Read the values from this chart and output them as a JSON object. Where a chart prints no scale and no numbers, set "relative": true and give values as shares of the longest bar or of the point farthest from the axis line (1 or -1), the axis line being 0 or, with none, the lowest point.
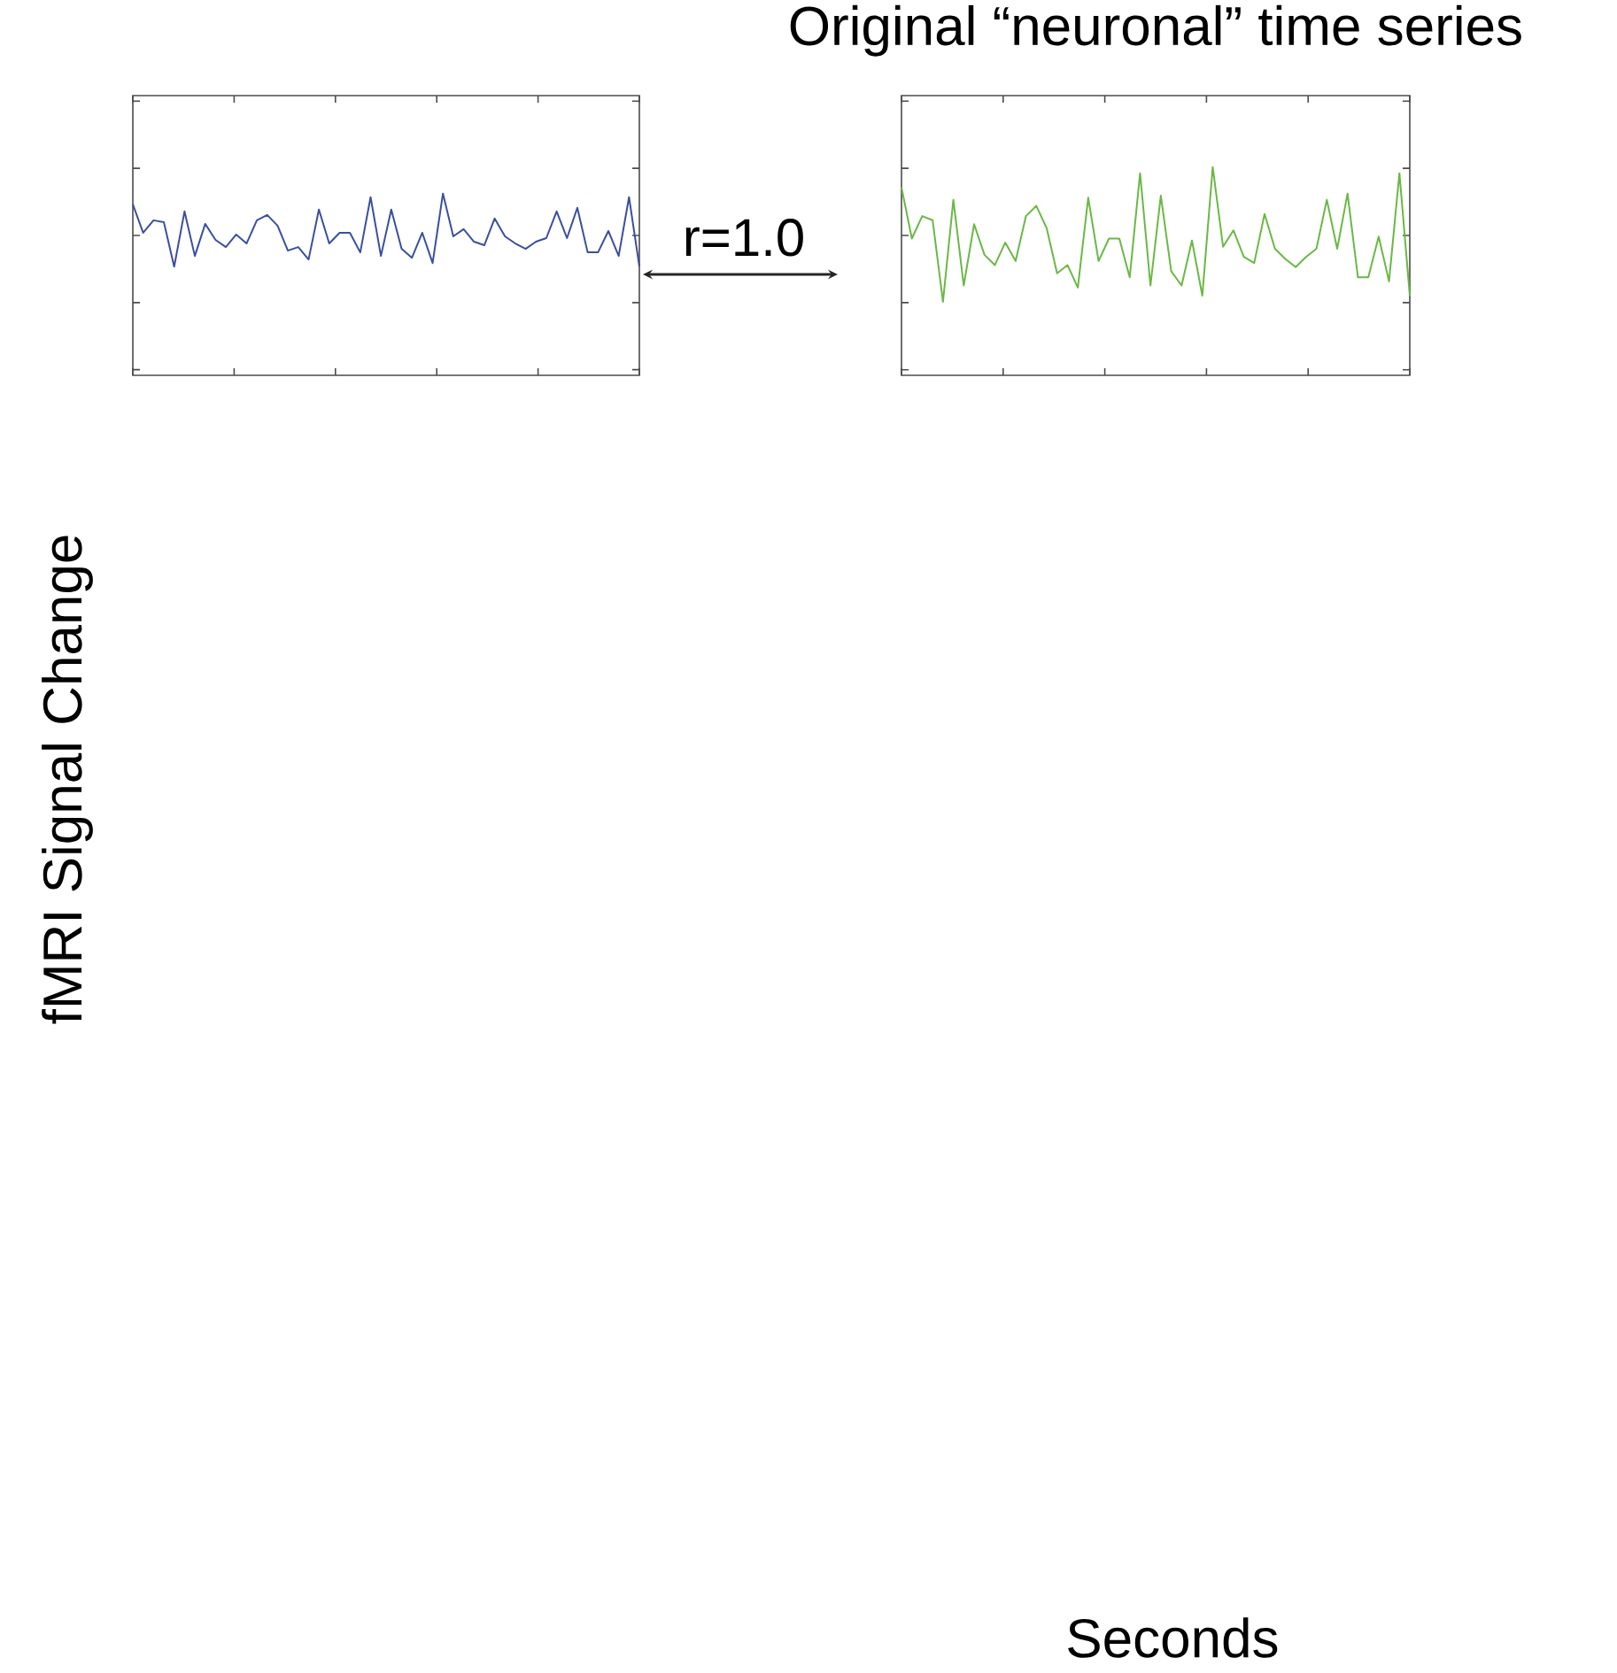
{
  "chart_data": [
    {
      "type": "line",
      "relative": true,
      "tick_labels": false,
      "ylabel": "fMRI Signal Change",
      "annotations": [
        "r=1.0"
      ],
      "color": "#3a4f9e",
      "categories": [
        null,
        null,
        null,
        null,
        null,
        null,
        null,
        null,
        null,
        null,
        null,
        null,
        null,
        null,
        null,
        null,
        null,
        null,
        null,
        null,
        null,
        null,
        null,
        null,
        null,
        null,
        null,
        null,
        null,
        null,
        null,
        null,
        null,
        null,
        null,
        null,
        null,
        null,
        null,
        null,
        null,
        null,
        null,
        null,
        null,
        null,
        null,
        null,
        null,
        null
      ],
      "values": [
        0.94,
        0.78,
        0.85,
        0.84,
        0.59,
        0.9,
        0.65,
        0.83,
        0.74,
        0.7,
        0.77,
        0.72,
        0.85,
        0.88,
        0.82,
        0.68,
        0.7,
        0.63,
        0.91,
        0.72,
        0.78,
        0.78,
        0.67,
        0.98,
        0.65,
        0.91,
        0.69,
        0.64,
        0.78,
        0.61,
        1.0,
        0.76,
        0.8,
        0.73,
        0.71,
        0.86,
        0.76,
        0.72,
        0.69,
        0.73,
        0.75,
        0.9,
        0.75,
        0.92,
        0.67,
        0.67,
        0.79,
        0.65,
        0.98,
        0.59
      ]
    },
    {
      "type": "line",
      "relative": true,
      "tick_labels": false,
      "title": "Original “neuronal” time series",
      "xlabel": "Seconds",
      "color": "#6ab845",
      "categories": [
        null,
        null,
        null,
        null,
        null,
        null,
        null,
        null,
        null,
        null,
        null,
        null,
        null,
        null,
        null,
        null,
        null,
        null,
        null,
        null,
        null,
        null,
        null,
        null,
        null,
        null,
        null,
        null,
        null,
        null,
        null,
        null,
        null,
        null,
        null,
        null,
        null,
        null,
        null,
        null,
        null,
        null,
        null,
        null,
        null,
        null,
        null,
        null,
        null,
        null
      ],
      "values": [
        0.9,
        0.65,
        0.76,
        0.74,
        0.34,
        0.84,
        0.42,
        0.72,
        0.57,
        0.52,
        0.63,
        0.54,
        0.76,
        0.81,
        0.7,
        0.48,
        0.52,
        0.41,
        0.85,
        0.54,
        0.65,
        0.65,
        0.46,
        0.97,
        0.42,
        0.86,
        0.49,
        0.42,
        0.64,
        0.37,
        1.0,
        0.61,
        0.69,
        0.56,
        0.53,
        0.77,
        0.6,
        0.55,
        0.51,
        0.56,
        0.6,
        0.84,
        0.6,
        0.87,
        0.46,
        0.46,
        0.66,
        0.44,
        0.97,
        0.37
      ]
    }
  ]
}
